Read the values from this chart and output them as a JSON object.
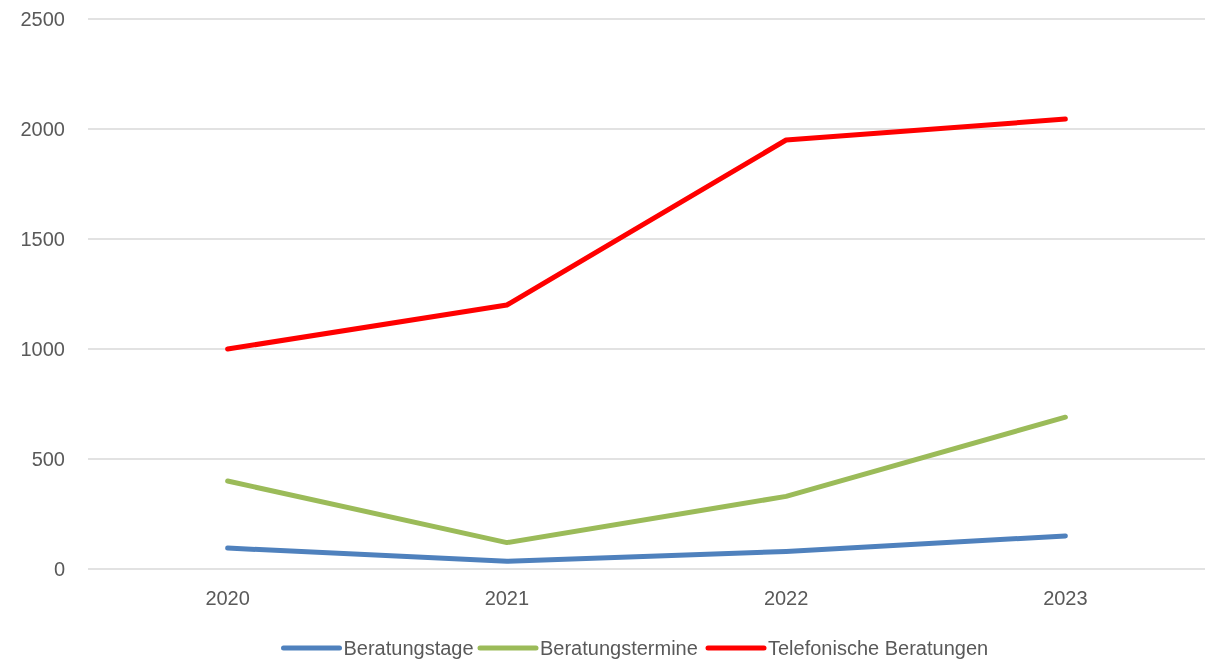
{
  "chart_data": {
    "type": "line",
    "categories": [
      "2020",
      "2021",
      "2022",
      "2023"
    ],
    "series": [
      {
        "name": "Beratungstage",
        "color": "#4f81bd",
        "values": [
          95,
          35,
          80,
          150
        ]
      },
      {
        "name": "Beratungstermine",
        "color": "#9bbb59",
        "values": [
          400,
          120,
          330,
          690
        ]
      },
      {
        "name": "Telefonische Beratungen",
        "color": "#ff0000",
        "values": [
          1000,
          1200,
          1950,
          2045
        ]
      }
    ],
    "ylim": [
      0,
      2500
    ],
    "yticks": [
      0,
      500,
      1000,
      1500,
      2000,
      2500
    ],
    "grid": "y",
    "legend": "bottom",
    "line_style": "solid",
    "marker": "none"
  }
}
